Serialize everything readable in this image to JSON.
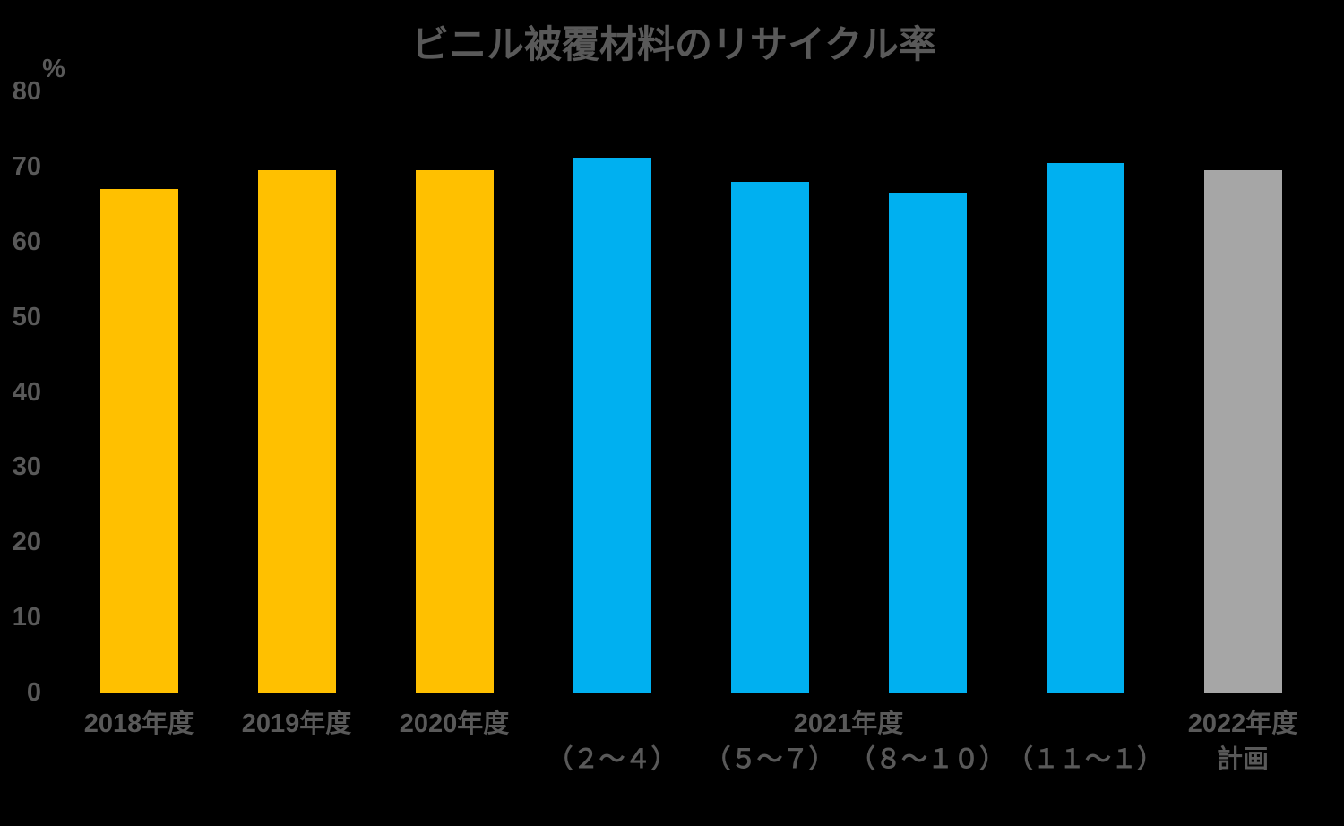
{
  "title": "ビニル被覆材料のリサイクル率",
  "y_axis": {
    "unit": "%",
    "ticks": [
      "80",
      "70",
      "60",
      "50",
      "40",
      "30",
      "20",
      "10",
      "0"
    ]
  },
  "x_axis": {
    "year_labels": [
      "2018年度",
      "2019年度",
      "2020年度",
      "2021年度",
      "2022年度"
    ],
    "quarter_labels": [
      "（２～４）",
      "（５～７）",
      "（８～１０）",
      "（１１～１）"
    ],
    "plan_label": "計画"
  },
  "colors": {
    "bar_past_years": "#FFC000",
    "bar_2021_quarters": "#00B0F0",
    "bar_plan": "#A6A6A6",
    "text": "#595959",
    "background": "#000000"
  },
  "chart_data": {
    "type": "bar",
    "title": "ビニル被覆材料のリサイクル率",
    "xlabel": "",
    "ylabel": "%",
    "ylim": [
      0,
      80
    ],
    "grid": false,
    "legend": "none",
    "categories": [
      "2018年度",
      "2019年度",
      "2020年度",
      "2021年度（２～４）",
      "2021年度（５～７）",
      "2021年度（８～１０）",
      "2021年度（１１～１）",
      "2022年度 計画"
    ],
    "values": [
      67,
      69.5,
      69.5,
      71.2,
      68,
      66.5,
      70.5,
      69.5
    ],
    "bar_colors": [
      "#FFC000",
      "#FFC000",
      "#FFC000",
      "#00B0F0",
      "#00B0F0",
      "#00B0F0",
      "#00B0F0",
      "#A6A6A6"
    ]
  }
}
